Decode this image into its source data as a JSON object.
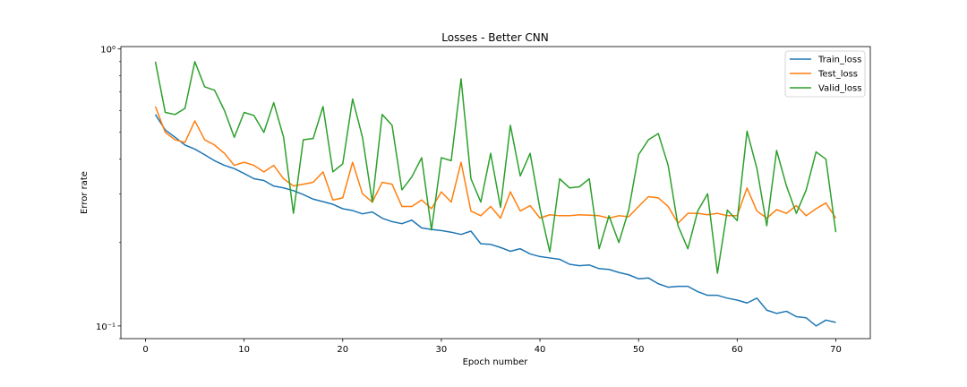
{
  "chart_data": {
    "type": "line",
    "title": "Losses - Better CNN",
    "xlabel": "Epoch number",
    "ylabel": "Error rate",
    "yscale": "log",
    "xlim": [
      -2.5,
      73.5
    ],
    "ylim": [
      0.09,
      1.02
    ],
    "xticks": [
      0,
      10,
      20,
      30,
      40,
      50,
      60,
      70
    ],
    "xtick_labels": [
      "0",
      "10",
      "20",
      "30",
      "40",
      "50",
      "60",
      "70"
    ],
    "yticks": [
      0.1,
      1.0
    ],
    "ytick_labels": [
      "10⁻¹",
      "10⁰"
    ],
    "legend_position": "top-right",
    "grid": false,
    "x": [
      1,
      2,
      3,
      4,
      5,
      6,
      7,
      8,
      9,
      10,
      11,
      12,
      13,
      14,
      15,
      16,
      17,
      18,
      19,
      20,
      21,
      22,
      23,
      24,
      25,
      26,
      27,
      28,
      29,
      30,
      31,
      32,
      33,
      34,
      35,
      36,
      37,
      38,
      39,
      40,
      41,
      42,
      43,
      44,
      45,
      46,
      47,
      48,
      49,
      50,
      51,
      52,
      53,
      54,
      55,
      56,
      57,
      58,
      59,
      60,
      61,
      62,
      63,
      64,
      65,
      66,
      67,
      68,
      69,
      70
    ],
    "series": [
      {
        "name": "Train_loss",
        "color": "#1f77b4",
        "values": [
          0.58,
          0.51,
          0.48,
          0.45,
          0.435,
          0.415,
          0.395,
          0.38,
          0.37,
          0.355,
          0.34,
          0.335,
          0.32,
          0.315,
          0.308,
          0.298,
          0.287,
          0.281,
          0.275,
          0.265,
          0.261,
          0.254,
          0.258,
          0.245,
          0.238,
          0.234,
          0.241,
          0.226,
          0.223,
          0.221,
          0.218,
          0.214,
          0.22,
          0.198,
          0.197,
          0.192,
          0.186,
          0.19,
          0.182,
          0.178,
          0.176,
          0.174,
          0.167,
          0.165,
          0.166,
          0.161,
          0.16,
          0.156,
          0.153,
          0.148,
          0.149,
          0.142,
          0.138,
          0.139,
          0.139,
          0.133,
          0.129,
          0.129,
          0.126,
          0.124,
          0.121,
          0.126,
          0.114,
          0.111,
          0.113,
          0.108,
          0.107,
          0.1,
          0.105,
          0.103
        ]
      },
      {
        "name": "Test_loss",
        "color": "#ff7f0e",
        "values": [
          0.62,
          0.5,
          0.47,
          0.46,
          0.55,
          0.47,
          0.45,
          0.42,
          0.38,
          0.39,
          0.38,
          0.36,
          0.38,
          0.34,
          0.32,
          0.325,
          0.33,
          0.36,
          0.285,
          0.29,
          0.39,
          0.3,
          0.28,
          0.33,
          0.325,
          0.27,
          0.27,
          0.285,
          0.265,
          0.305,
          0.28,
          0.39,
          0.26,
          0.25,
          0.27,
          0.245,
          0.305,
          0.26,
          0.272,
          0.245,
          0.252,
          0.25,
          0.25,
          0.252,
          0.251,
          0.25,
          0.245,
          0.25,
          0.248,
          0.27,
          0.293,
          0.29,
          0.27,
          0.235,
          0.255,
          0.255,
          0.252,
          0.255,
          0.25,
          0.25,
          0.315,
          0.26,
          0.245,
          0.263,
          0.255,
          0.272,
          0.25,
          0.265,
          0.278,
          0.245
        ]
      },
      {
        "name": "Valid_loss",
        "color": "#2ca02c",
        "values": [
          0.9,
          0.59,
          0.58,
          0.61,
          0.9,
          0.73,
          0.71,
          0.6,
          0.48,
          0.59,
          0.575,
          0.5,
          0.64,
          0.48,
          0.255,
          0.47,
          0.475,
          0.62,
          0.36,
          0.385,
          0.66,
          0.48,
          0.28,
          0.58,
          0.53,
          0.31,
          0.345,
          0.405,
          0.222,
          0.405,
          0.395,
          0.78,
          0.34,
          0.28,
          0.42,
          0.268,
          0.53,
          0.348,
          0.42,
          0.265,
          0.185,
          0.34,
          0.315,
          0.318,
          0.34,
          0.19,
          0.25,
          0.2,
          0.262,
          0.415,
          0.47,
          0.495,
          0.38,
          0.23,
          0.19,
          0.26,
          0.3,
          0.155,
          0.262,
          0.24,
          0.505,
          0.37,
          0.23,
          0.43,
          0.32,
          0.255,
          0.31,
          0.425,
          0.4,
          0.218
        ]
      }
    ]
  }
}
